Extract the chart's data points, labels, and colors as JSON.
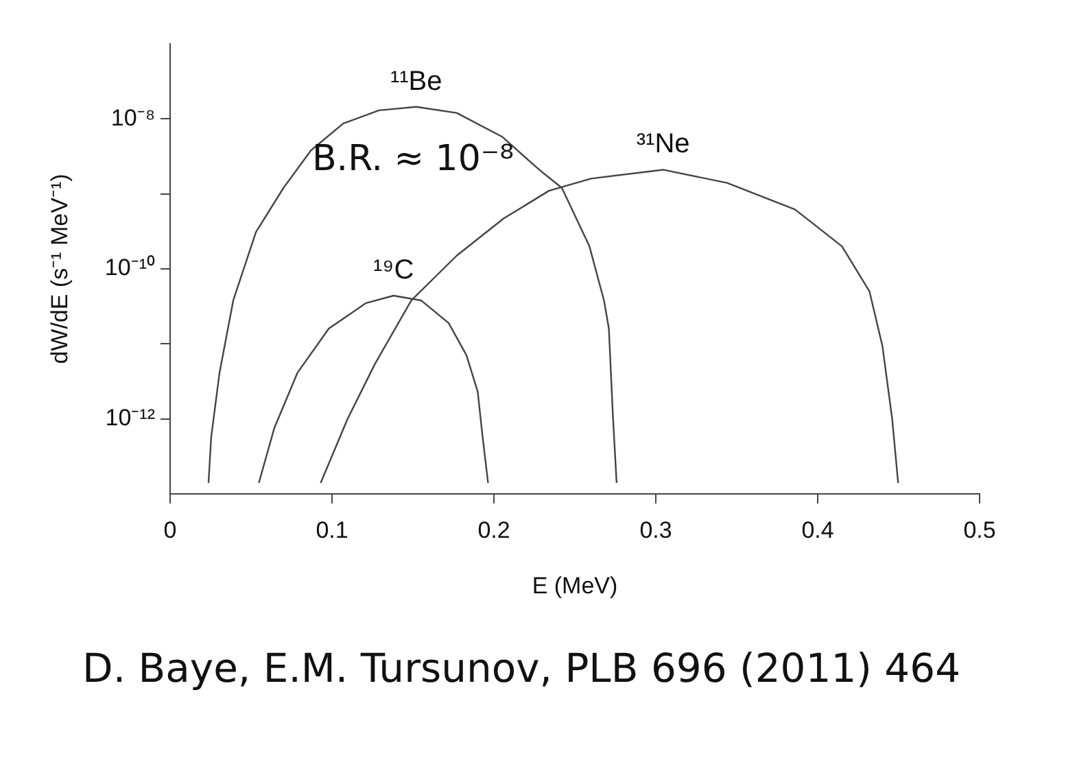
{
  "chart_data": {
    "type": "line",
    "xlabel": "E (MeV)",
    "ylabel": "dW/dE (s⁻¹ MeV⁻¹)",
    "log": "y",
    "grid": false,
    "legend": false,
    "marker": "none",
    "line_style": "solid",
    "xlim": [
      0,
      0.5
    ],
    "xticks": [
      0,
      0.1,
      0.2,
      0.3,
      0.4,
      0.5
    ],
    "ylim": [
      1e-13,
      1e-07
    ],
    "yticks": [
      {
        "value": 1e-08,
        "label": "10⁻⁸"
      },
      {
        "value": 1e-09,
        "label": null
      },
      {
        "value": 1e-10,
        "label": "10⁻¹⁰"
      },
      {
        "value": 1e-11,
        "label": null
      },
      {
        "value": 1e-12,
        "label": "10⁻¹²"
      }
    ],
    "series": [
      {
        "name": "¹¹Be",
        "color": "#444444",
        "x": [
          0.0237,
          0.0254,
          0.0305,
          0.039,
          0.053,
          0.07,
          0.087,
          0.107,
          0.129,
          0.152,
          0.177,
          0.205,
          0.228,
          0.242,
          0.259,
          0.268,
          0.271,
          0.2735,
          0.2758
        ],
        "values": [
          1.4e-13,
          5.8e-13,
          4.1e-12,
          3.8e-11,
          3.1e-10,
          1.2e-09,
          3.8e-09,
          8.7e-09,
          1.3e-08,
          1.45e-08,
          1.2e-08,
          5.8e-09,
          2.1e-09,
          1.2e-09,
          2e-10,
          3.8e-11,
          1.6e-11,
          1.1e-12,
          1.4e-13
        ]
      },
      {
        "name": "¹⁹C",
        "color": "#444444",
        "x": [
          0.0548,
          0.0644,
          0.0786,
          0.098,
          0.121,
          0.138,
          0.155,
          0.172,
          0.183,
          0.19,
          0.193,
          0.1964
        ],
        "values": [
          1.4e-13,
          7.6e-13,
          4.1e-12,
          1.6e-11,
          3.5e-11,
          4.4e-11,
          3.8e-11,
          1.9e-11,
          7.1e-12,
          2.3e-12,
          5.8e-13,
          1.4e-13
        ]
      },
      {
        "name": "³¹Ne",
        "color": "#444444",
        "x": [
          0.093,
          0.1096,
          0.1265,
          0.149,
          0.177,
          0.206,
          0.234,
          0.26,
          0.3045,
          0.344,
          0.386,
          0.415,
          0.432,
          0.44,
          0.446,
          0.4497
        ],
        "values": [
          1.4e-13,
          1e-12,
          5.4e-12,
          3.8e-11,
          1.5e-10,
          4.7e-10,
          1.1e-09,
          1.6e-09,
          2.1e-09,
          1.4e-09,
          6.2e-10,
          2e-10,
          5e-11,
          9.3e-12,
          1e-12,
          1.4e-13
        ]
      }
    ],
    "annotations": [
      "B.R. ≈ 10⁻⁸",
      "D. Baye, E.M. Tursunov, PLB 696 (2011) 464"
    ]
  }
}
